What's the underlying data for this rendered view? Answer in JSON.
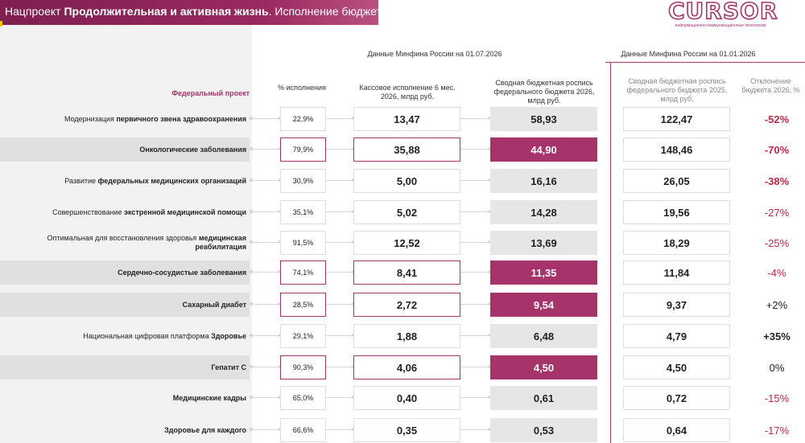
{
  "header": {
    "title_prefix": "Нацпроект ",
    "title_bold": "Продолжительная и активная жизнь",
    "title_suffix": ". Исполнение бюджета"
  },
  "logo": {
    "word": "CURSOR",
    "subtitle": "информационно-коммуникационные технологии"
  },
  "sources": {
    "left": "Данные Минфина России на 01.07.2026",
    "right": "Данные Минфина России на 01.01.2026"
  },
  "columns": {
    "project": "Федеральный проект",
    "pct": "% исполнения",
    "cash": "Кассовое исполнение 6 мес. 2026, млрд руб.",
    "budget26": "Сводная бюджетная роспись федерального бюджета 2026, млрд руб.",
    "budget25": "Сводная бюджетная роспись федерального бюджета 2025, млрд руб.",
    "dev": "Отклонение бюджета 2026, %"
  },
  "rows": [
    {
      "pre": "Модернизация ",
      "bold": "первичного звена здравоохранения",
      "post": "",
      "pct": "22,9%",
      "cash": "13,47",
      "b26": "58,93",
      "b25": "122,47",
      "dev": "-52%"
    },
    {
      "pre": "",
      "bold": "Онкологические заболевания",
      "post": "",
      "pct": "79,9%",
      "cash": "35,88",
      "b26": "44,90",
      "b25": "148,46",
      "dev": "-70%"
    },
    {
      "pre": "Развитие ",
      "bold": "федеральных медицинских организаций",
      "post": "",
      "pct": "30,9%",
      "cash": "5,00",
      "b26": "16,16",
      "b25": "26,05",
      "dev": "-38%"
    },
    {
      "pre": "Совершенствование ",
      "bold": "экстренной медицинской помощи",
      "post": "",
      "pct": "35,1%",
      "cash": "5,02",
      "b26": "14,28",
      "b25": "19,56",
      "dev": "-27%"
    },
    {
      "pre": "Оптимальная для восстановления здоровья ",
      "bold": "медицинская реабилитация",
      "post": "",
      "pct": "91,5%",
      "cash": "12,52",
      "b26": "13,69",
      "b25": "18,29",
      "dev": "-25%"
    },
    {
      "pre": "",
      "bold": "Сердечно-сосудистые заболевания",
      "post": "",
      "pct": "74,1%",
      "cash": "8,41",
      "b26": "11,35",
      "b25": "11,84",
      "dev": "-4%"
    },
    {
      "pre": "",
      "bold": "Сахарный диабет",
      "post": "",
      "pct": "28,5%",
      "cash": "2,72",
      "b26": "9,54",
      "b25": "9,37",
      "dev": "+2%"
    },
    {
      "pre": "Национальная цифровая платформа ",
      "bold": "Здоровье",
      "post": "",
      "pct": "29,1%",
      "cash": "1,88",
      "b26": "6,48",
      "b25": "4,79",
      "dev": "+35%"
    },
    {
      "pre": "",
      "bold": "Гепатит С",
      "post": "",
      "pct": "90,3%",
      "cash": "4,06",
      "b26": "4,50",
      "b25": "4,50",
      "dev": "0%"
    },
    {
      "pre": "",
      "bold": "Медицинские кадры",
      "post": "",
      "pct": "65,0%",
      "cash": "0,40",
      "b26": "0,61",
      "b25": "0,72",
      "dev": "-15%"
    },
    {
      "pre": "",
      "bold": "Здоровье для каждого",
      "post": "",
      "pct": "66,6%",
      "cash": "0,35",
      "b26": "0,53",
      "b25": "0,64",
      "dev": "-17%"
    }
  ],
  "colors": {
    "accent": "#a6336a",
    "negative": "#c0284a",
    "band": "#e0e0e0"
  }
}
